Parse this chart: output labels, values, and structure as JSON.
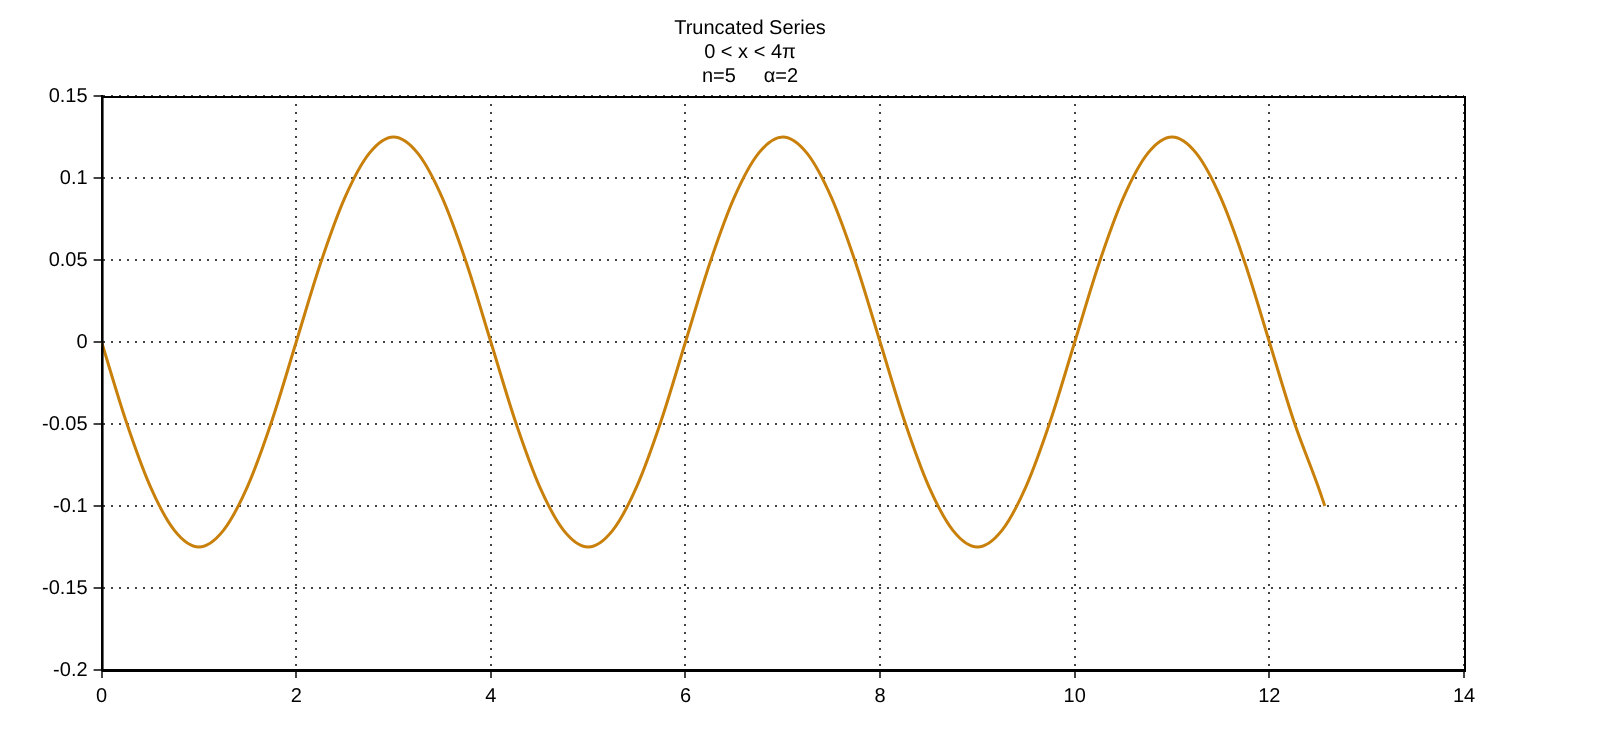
{
  "chart_data": {
    "type": "line",
    "title": "Truncated Series",
    "subtitle": "0 < x < 4π",
    "annotations": [
      "n=5     α=2"
    ],
    "x": [
      0,
      0.25,
      0.5,
      0.75,
      1,
      1.25,
      1.5,
      1.75,
      2,
      2.25,
      2.5,
      2.75,
      3,
      3.25,
      3.5,
      3.75,
      4,
      4.25,
      4.5,
      4.75,
      5,
      5.25,
      5.5,
      5.75,
      6,
      6.25,
      6.5,
      6.75,
      7,
      7.25,
      7.5,
      7.75,
      8,
      8.25,
      8.5,
      8.75,
      9,
      9.25,
      9.5,
      9.75,
      10,
      10.25,
      10.5,
      10.75,
      11,
      11.25,
      11.5,
      11.75,
      12,
      12.25,
      12.5,
      12.57
    ],
    "series": [
      {
        "color": "#c8800a",
        "values": [
          0,
          -0.048,
          -0.088,
          -0.115,
          -0.125,
          -0.115,
          -0.088,
          -0.048,
          0,
          0.048,
          0.088,
          0.115,
          0.125,
          0.115,
          0.088,
          0.048,
          0,
          -0.048,
          -0.088,
          -0.115,
          -0.125,
          -0.115,
          -0.088,
          -0.048,
          0,
          0.048,
          0.088,
          0.115,
          0.125,
          0.115,
          0.088,
          0.048,
          0,
          -0.048,
          -0.088,
          -0.115,
          -0.125,
          -0.115,
          -0.088,
          -0.048,
          0,
          0.048,
          0.088,
          0.115,
          0.125,
          0.115,
          0.088,
          0.048,
          0,
          -0.048,
          -0.088,
          -0.1
        ]
      }
    ],
    "xlim": [
      0,
      14
    ],
    "xticks": [
      0,
      2,
      4,
      6,
      8,
      10,
      12,
      14
    ],
    "ylim": [
      -0.2,
      0.15
    ],
    "yticks": [
      -0.2,
      -0.15,
      -0.1,
      -0.05,
      0,
      0.05,
      0.1,
      0.15
    ],
    "grid": true,
    "legend": false,
    "marker": "none",
    "line_style": "solid"
  }
}
